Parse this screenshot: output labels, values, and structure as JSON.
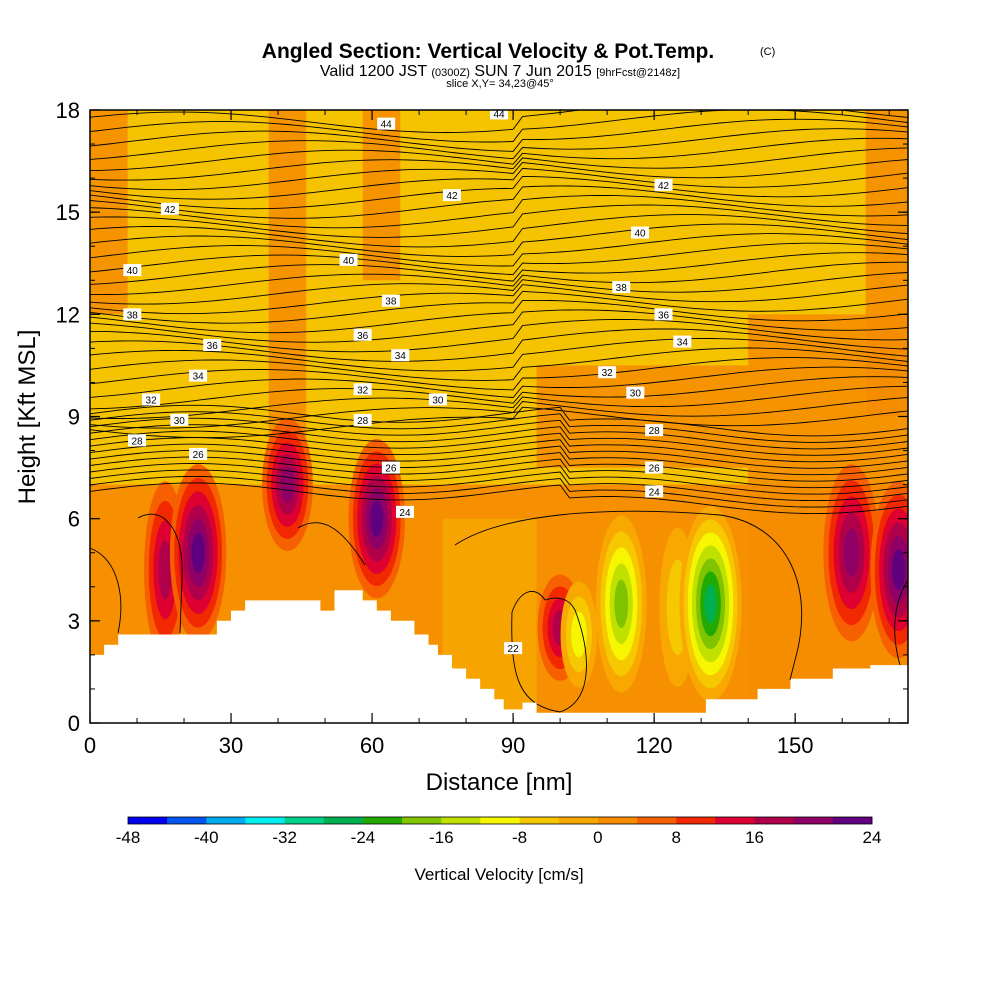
{
  "title": "Angled Section: Vertical Velocity & Pot.Temp.",
  "title_mark": "(C)",
  "subtitle_prefix": "Valid 1200 JST",
  "subtitle_utc": "(0300Z)",
  "subtitle_date": "SUN 7 Jun 2015",
  "subtitle_fcst": "[9hrFcst@2148z]",
  "slice_text": "slice X,Y= 34,23@45°",
  "chart_data": {
    "type": "heatmap",
    "xlabel": "Distance [nm]",
    "ylabel": "Height [Kft MSL]",
    "xlim": [
      0,
      174
    ],
    "ylim": [
      0,
      18
    ],
    "x_ticks": [
      "0",
      "30",
      "60",
      "90",
      "120",
      "150"
    ],
    "x_tick_values": [
      0,
      30,
      60,
      90,
      120,
      150
    ],
    "y_ticks": [
      "0",
      "3",
      "6",
      "9",
      "12",
      "15",
      "18"
    ],
    "y_tick_values": [
      0,
      3,
      6,
      9,
      12,
      15,
      18
    ],
    "colorbar": {
      "label": "Vertical Velocity [cm/s]",
      "tick_labels": [
        "-48",
        "-40",
        "-32",
        "-24",
        "-16",
        "-8",
        "0",
        "8",
        "16",
        "24"
      ],
      "tick_values": [
        -48,
        -40,
        -32,
        -24,
        -16,
        -8,
        0,
        8,
        16,
        24
      ],
      "colors": [
        "#0000ee",
        "#0055ee",
        "#00aaee",
        "#00eeee",
        "#00d08a",
        "#00b050",
        "#22aa00",
        "#80c400",
        "#c0e000",
        "#f6f600",
        "#f6c800",
        "#f8a800",
        "#f68c00",
        "#f66000",
        "#f22800",
        "#dd0030",
        "#b0004a",
        "#8e0066",
        "#600080"
      ]
    },
    "contour_labels": [
      {
        "text": "44",
        "x": 63,
        "y": 17.6
      },
      {
        "text": "44",
        "x": 87,
        "y": 17.9
      },
      {
        "text": "42",
        "x": 17,
        "y": 15.1
      },
      {
        "text": "42",
        "x": 77,
        "y": 15.5
      },
      {
        "text": "42",
        "x": 122,
        "y": 15.8
      },
      {
        "text": "40",
        "x": 9,
        "y": 13.3
      },
      {
        "text": "40",
        "x": 55,
        "y": 13.6
      },
      {
        "text": "40",
        "x": 117,
        "y": 14.4
      },
      {
        "text": "38",
        "x": 9,
        "y": 12.0
      },
      {
        "text": "38",
        "x": 64,
        "y": 12.4
      },
      {
        "text": "38",
        "x": 113,
        "y": 12.8
      },
      {
        "text": "36",
        "x": 26,
        "y": 11.1
      },
      {
        "text": "36",
        "x": 58,
        "y": 11.4
      },
      {
        "text": "36",
        "x": 122,
        "y": 12.0
      },
      {
        "text": "34",
        "x": 23,
        "y": 10.2
      },
      {
        "text": "34",
        "x": 66,
        "y": 10.8
      },
      {
        "text": "34",
        "x": 126,
        "y": 11.2
      },
      {
        "text": "32",
        "x": 13,
        "y": 9.5
      },
      {
        "text": "32",
        "x": 58,
        "y": 9.8
      },
      {
        "text": "32",
        "x": 110,
        "y": 10.3
      },
      {
        "text": "30",
        "x": 19,
        "y": 8.9
      },
      {
        "text": "30",
        "x": 74,
        "y": 9.5
      },
      {
        "text": "30",
        "x": 116,
        "y": 9.7
      },
      {
        "text": "28",
        "x": 10,
        "y": 8.3
      },
      {
        "text": "28",
        "x": 58,
        "y": 8.9
      },
      {
        "text": "28",
        "x": 120,
        "y": 8.6
      },
      {
        "text": "26",
        "x": 23,
        "y": 7.9
      },
      {
        "text": "26",
        "x": 64,
        "y": 7.5
      },
      {
        "text": "26",
        "x": 120,
        "y": 7.5
      },
      {
        "text": "24",
        "x": 67,
        "y": 6.2
      },
      {
        "text": "24",
        "x": 120,
        "y": 6.8
      },
      {
        "text": "22",
        "x": 90,
        "y": 2.2
      }
    ],
    "terrain_kft": [
      [
        0,
        2.0
      ],
      [
        3,
        2.0
      ],
      [
        3,
        2.3
      ],
      [
        6,
        2.3
      ],
      [
        6,
        2.6
      ],
      [
        27,
        2.6
      ],
      [
        27,
        3.0
      ],
      [
        30,
        3.0
      ],
      [
        30,
        3.3
      ],
      [
        33,
        3.3
      ],
      [
        33,
        3.6
      ],
      [
        49,
        3.6
      ],
      [
        49,
        3.3
      ],
      [
        52,
        3.3
      ],
      [
        52,
        3.9
      ],
      [
        58,
        3.9
      ],
      [
        58,
        3.6
      ],
      [
        61,
        3.6
      ],
      [
        61,
        3.3
      ],
      [
        64,
        3.3
      ],
      [
        64,
        3.0
      ],
      [
        69,
        3.0
      ],
      [
        69,
        2.6
      ],
      [
        72,
        2.6
      ],
      [
        72,
        2.3
      ],
      [
        74,
        2.3
      ],
      [
        74,
        2.0
      ],
      [
        77,
        2.0
      ],
      [
        77,
        1.6
      ],
      [
        80,
        1.6
      ],
      [
        80,
        1.3
      ],
      [
        83,
        1.3
      ],
      [
        83,
        1.0
      ],
      [
        86,
        1.0
      ],
      [
        86,
        0.7
      ],
      [
        88,
        0.7
      ],
      [
        88,
        0.4
      ],
      [
        92,
        0.4
      ],
      [
        92,
        0.6
      ],
      [
        95,
        0.6
      ],
      [
        95,
        0.3
      ],
      [
        131,
        0.3
      ],
      [
        131,
        0.7
      ],
      [
        142,
        0.7
      ],
      [
        142,
        1.0
      ],
      [
        149,
        1.0
      ],
      [
        149,
        1.3
      ],
      [
        158,
        1.3
      ],
      [
        158,
        1.6
      ],
      [
        166,
        1.6
      ],
      [
        166,
        1.7
      ],
      [
        174,
        1.7
      ]
    ],
    "cells": [
      {
        "x": 16,
        "y": 4.5,
        "w": 1.5,
        "h": 2.0,
        "v": 14
      },
      {
        "x": 23,
        "y": 5.0,
        "w": 2.0,
        "h": 2.0,
        "v": 22
      },
      {
        "x": 42,
        "y": 7.0,
        "w": 1.8,
        "h": 1.5,
        "v": 20
      },
      {
        "x": 61,
        "y": 6.0,
        "w": 2.0,
        "h": 1.8,
        "v": 22
      },
      {
        "x": 100,
        "y": 2.8,
        "w": 1.6,
        "h": 1.2,
        "v": 16
      },
      {
        "x": 104,
        "y": 2.6,
        "w": 1.3,
        "h": 1.2,
        "v": -12
      },
      {
        "x": 113,
        "y": 3.5,
        "w": 1.8,
        "h": 2.0,
        "v": -20
      },
      {
        "x": 125,
        "y": 3.4,
        "w": 1.3,
        "h": 1.8,
        "v": -8
      },
      {
        "x": 132,
        "y": 3.5,
        "w": 2.2,
        "h": 2.2,
        "v": -28
      },
      {
        "x": 162,
        "y": 5.0,
        "w": 2.0,
        "h": 2.0,
        "v": 20
      },
      {
        "x": 172,
        "y": 4.5,
        "w": 2.0,
        "h": 2.0,
        "v": 22
      }
    ]
  }
}
